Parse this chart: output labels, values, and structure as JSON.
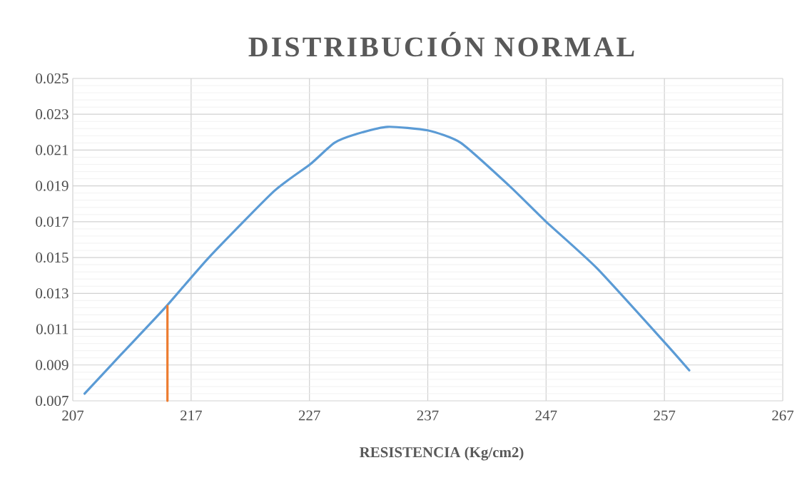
{
  "chart_data": {
    "type": "line",
    "title": "DISTRIBUCIÓN NORMAL",
    "xlabel": "RESISTENCIA (Kg/cm2)",
    "xlim": [
      207,
      267
    ],
    "xticks": [
      207,
      217,
      227,
      237,
      247,
      257,
      267
    ],
    "ylim": [
      0.007,
      0.025
    ],
    "yticks": [
      0.007,
      0.009,
      0.011,
      0.013,
      0.015,
      0.017,
      0.019,
      0.021,
      0.023,
      0.025
    ],
    "grid": true,
    "series": [
      {
        "color": "#5b9bd5",
        "x": [
          208.0,
          211.1,
          214.8,
          218.5,
          224.0,
          227.05,
          229.1,
          231.0,
          233.6,
          237.0,
          239.8,
          243.9,
          247.0,
          251.3,
          257.1,
          259.1
        ],
        "values": [
          0.0074,
          0.0096,
          0.0122,
          0.015,
          0.0187,
          0.0202,
          0.0214,
          0.0219,
          0.0223,
          0.0221,
          0.0214,
          0.019,
          0.017,
          0.0144,
          0.0102,
          0.0087
        ]
      },
      {
        "color": "#ed7d31",
        "x": [
          215.0,
          215.0
        ],
        "values": [
          0.007,
          0.0123
        ]
      }
    ]
  }
}
